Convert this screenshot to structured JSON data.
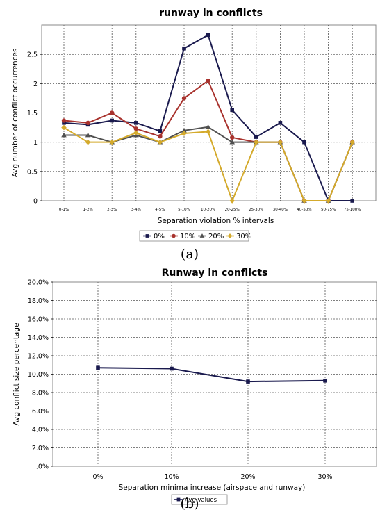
{
  "chart_data": [
    {
      "type": "line",
      "title": "runway in conflicts",
      "xlabel": "Separation violation % intervals",
      "ylabel": "Avg number of conflict occurrences",
      "categories": [
        "0-1%",
        "1-2%",
        "2-3%",
        "3-4%",
        "4-5%",
        "5-10%",
        "10-20%",
        "20-25%",
        "25-30%",
        "30-40%",
        "40-50%",
        "50-75%",
        "75-100%"
      ],
      "ylim": [
        0,
        3
      ],
      "yticks": [
        "0",
        "0.5",
        "1",
        "1.5",
        "2",
        "2.5"
      ],
      "grid": true,
      "legend_position": "bottom",
      "series": [
        {
          "name": "0%",
          "color": "#1a1a4e",
          "marker": "square",
          "values": [
            1.33,
            1.3,
            1.37,
            1.33,
            1.19,
            2.6,
            2.83,
            1.55,
            1.09,
            1.33,
            1.0,
            0,
            0
          ]
        },
        {
          "name": "10%",
          "color": "#a8322d",
          "marker": "circle",
          "values": [
            1.37,
            1.33,
            1.5,
            1.23,
            1.1,
            1.75,
            2.05,
            1.08,
            1.0,
            1.0,
            0,
            0,
            1.0
          ]
        },
        {
          "name": "20%",
          "color": "#505050",
          "marker": "triangle",
          "values": [
            1.12,
            1.12,
            1.0,
            1.12,
            1.0,
            1.2,
            1.26,
            1.0,
            1.0,
            1.0,
            0,
            0,
            1.0
          ]
        },
        {
          "name": "30%",
          "color": "#d4aa2c",
          "marker": "diamond",
          "values": [
            1.25,
            1.0,
            1.0,
            1.16,
            1.0,
            1.15,
            1.18,
            0,
            1.0,
            1.0,
            0,
            0,
            1.0
          ]
        }
      ]
    },
    {
      "type": "line",
      "title": "Runway in conflicts",
      "xlabel": "Separation minima increase (airspace and runway)",
      "ylabel": "Avg conflict size percentage",
      "categories": [
        "0%",
        "10%",
        "20%",
        "30%"
      ],
      "ylim": [
        0,
        20
      ],
      "yticks": [
        ".0%",
        "2.0%",
        "4.0%",
        "6.0%",
        "8.0%",
        "10.0%",
        "12.0%",
        "14.0%",
        "16.0%",
        "18.0%",
        "20.0%"
      ],
      "grid": true,
      "legend_position": "bottom",
      "series": [
        {
          "name": "Avg values",
          "color": "#1a1a4e",
          "marker": "square",
          "values": [
            10.7,
            10.6,
            9.2,
            9.3
          ]
        }
      ]
    }
  ],
  "captions": {
    "a": "(a)",
    "b": "(b)"
  }
}
